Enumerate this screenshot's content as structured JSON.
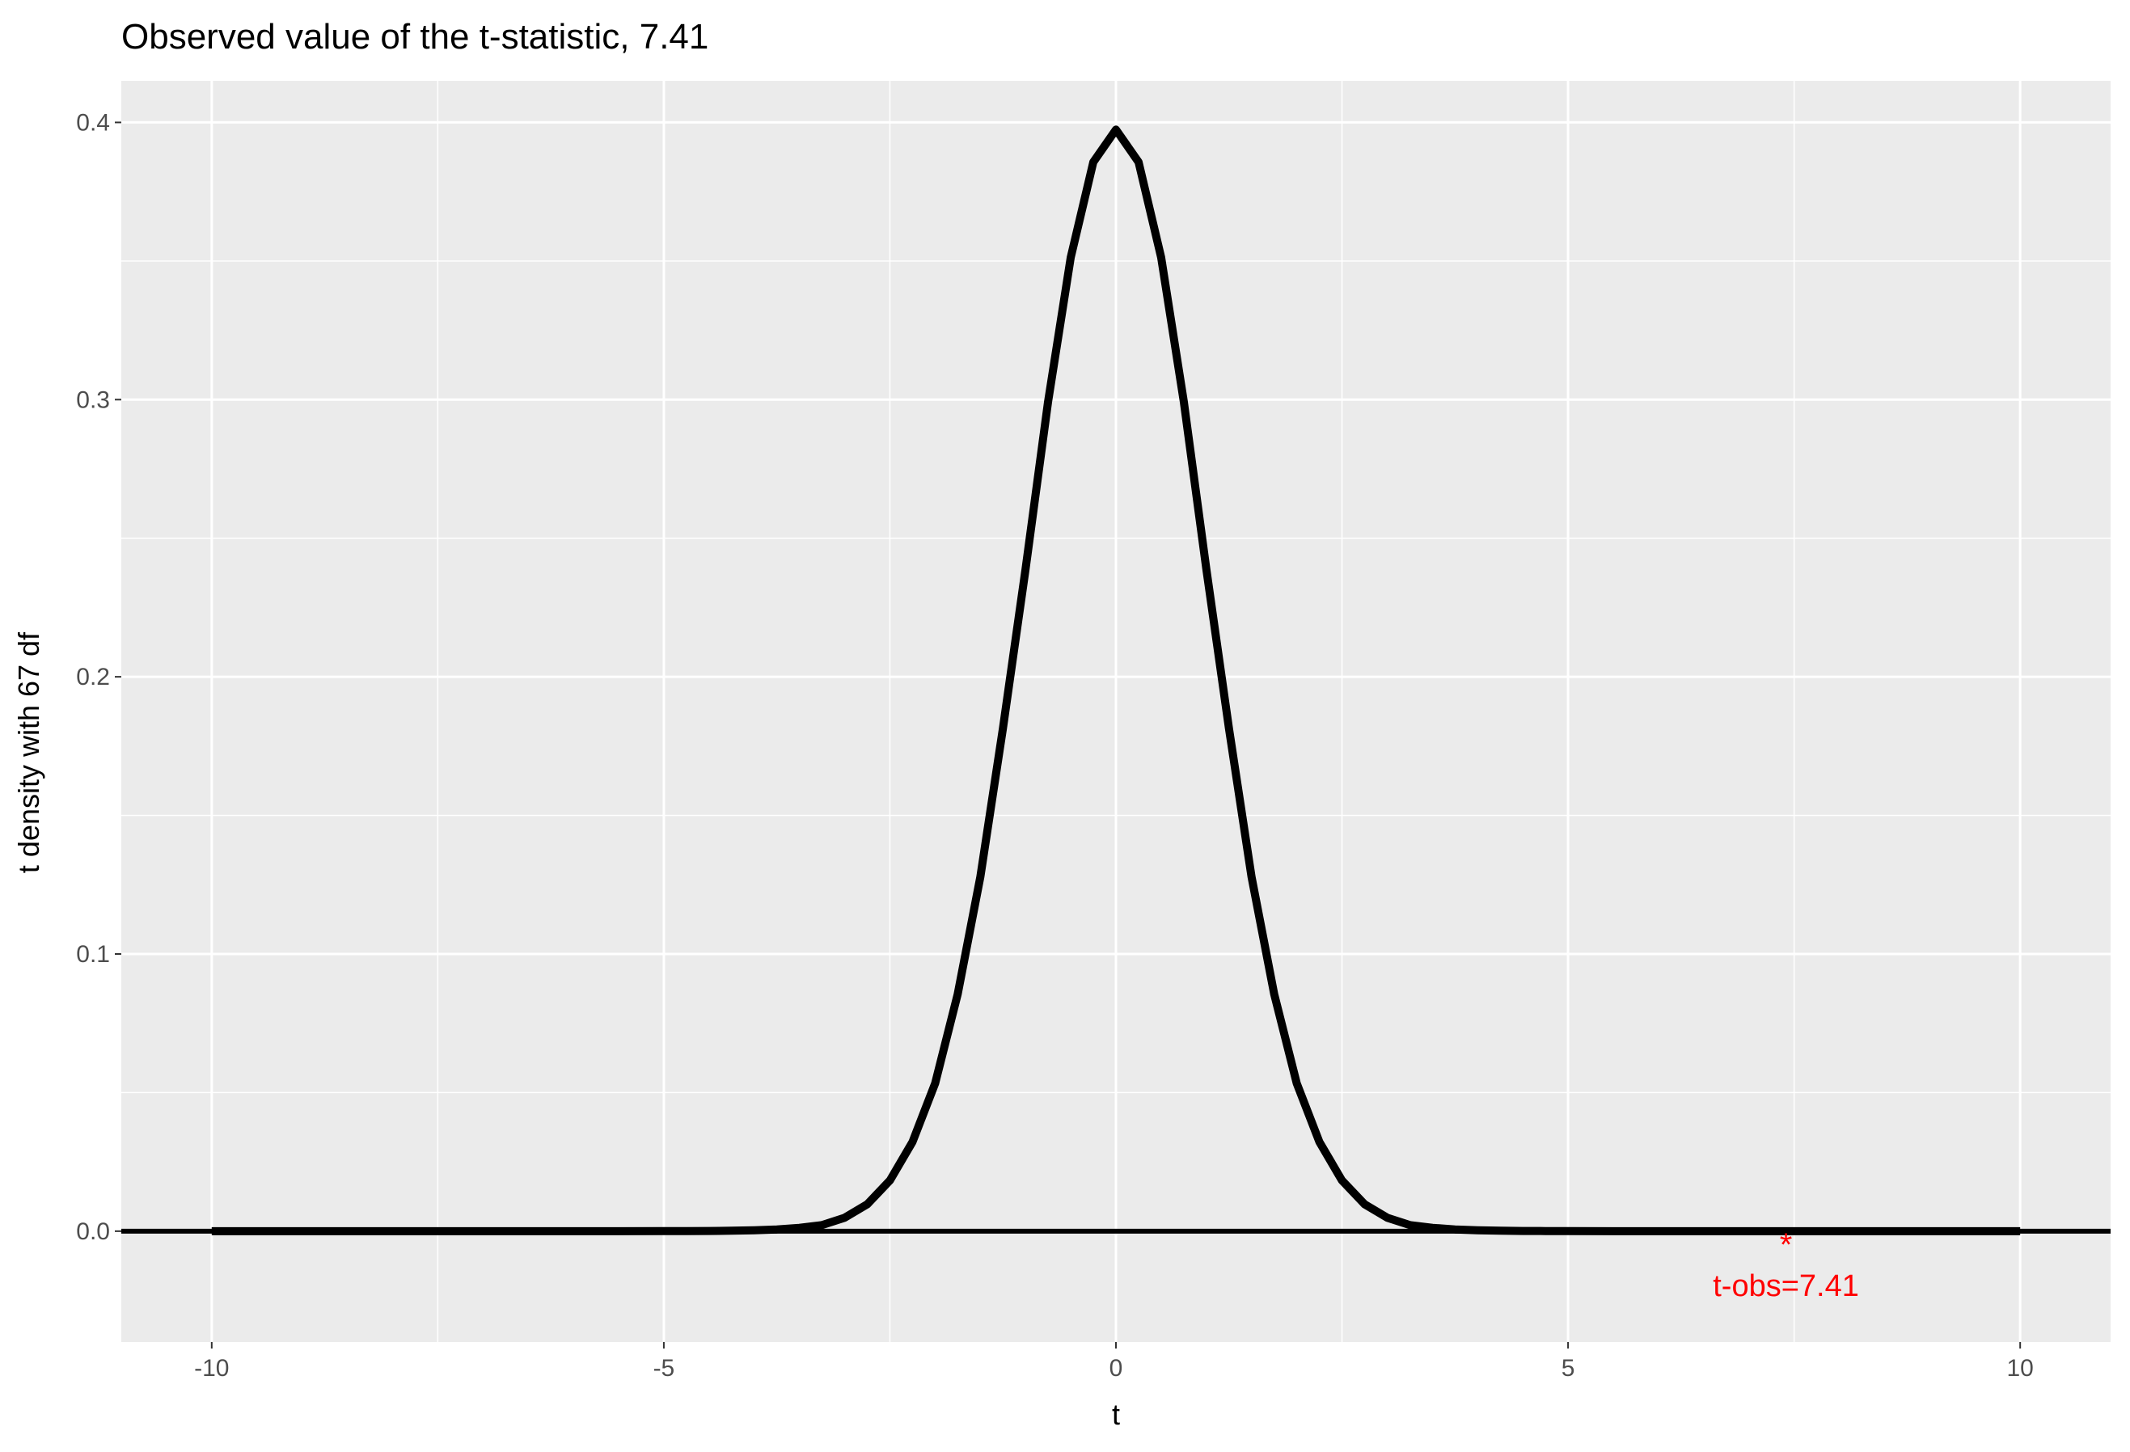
{
  "chart_data": {
    "type": "line",
    "title": "Observed value of the t-statistic, 7.41",
    "xlabel": "t",
    "ylabel": "t density with 67 df",
    "xlim": [
      -11,
      11
    ],
    "ylim": [
      -0.04,
      0.415
    ],
    "x_ticks": [
      -10,
      -5,
      0,
      5,
      10
    ],
    "x_tick_labels": [
      "-10",
      "-5",
      "0",
      "5",
      "10"
    ],
    "y_ticks": [
      0.0,
      0.1,
      0.2,
      0.3,
      0.4
    ],
    "y_tick_labels": [
      "0.0",
      "0.1",
      "0.2",
      "0.3",
      "0.4"
    ],
    "grid": true,
    "series": [
      {
        "color": "#000000",
        "x": [
          -10,
          -9.5,
          -9,
          -8.5,
          -8,
          -7.5,
          -7,
          -6.5,
          -6,
          -5.5,
          -5,
          -4.75,
          -4.5,
          -4.25,
          -4,
          -3.75,
          -3.5,
          -3.25,
          -3,
          -2.75,
          -2.5,
          -2.25,
          -2,
          -1.75,
          -1.5,
          -1.25,
          -1,
          -0.75,
          -0.5,
          -0.25,
          0,
          0.25,
          0.5,
          0.75,
          1,
          1.25,
          1.5,
          1.75,
          2,
          2.25,
          2.5,
          2.75,
          3,
          3.25,
          3.5,
          3.75,
          4,
          4.25,
          4.5,
          4.75,
          5,
          5.5,
          6,
          6.5,
          7,
          7.5,
          8,
          8.5,
          9,
          9.5,
          10
        ],
        "y": [
          0.0,
          0.0,
          0.0,
          0.0,
          0.0,
          0.0,
          0.0,
          0.0,
          0.0,
          0.0,
          2e-05,
          4e-05,
          8e-05,
          0.00016,
          0.00033,
          0.00064,
          0.00121,
          0.0022,
          0.00487,
          0.0097,
          0.0183,
          0.0322,
          0.0533,
          0.0855,
          0.1278,
          0.1813,
          0.2388,
          0.2993,
          0.3513,
          0.3857,
          0.3974,
          0.3857,
          0.3513,
          0.2993,
          0.2388,
          0.1813,
          0.1278,
          0.0855,
          0.0533,
          0.0322,
          0.0183,
          0.0097,
          0.00487,
          0.0022,
          0.00121,
          0.00064,
          0.00033,
          0.00016,
          8e-05,
          4e-05,
          2e-05,
          0.0,
          0.0,
          0.0,
          0.0,
          0.0,
          0.0,
          0.0,
          0.0,
          0.0,
          0.0
        ]
      }
    ],
    "hline": {
      "y": 0,
      "color": "#000000"
    },
    "annotation": {
      "x": 7.41,
      "y": 0,
      "marker": "*",
      "label": "t-obs=7.41",
      "color": "#ff0000"
    }
  }
}
